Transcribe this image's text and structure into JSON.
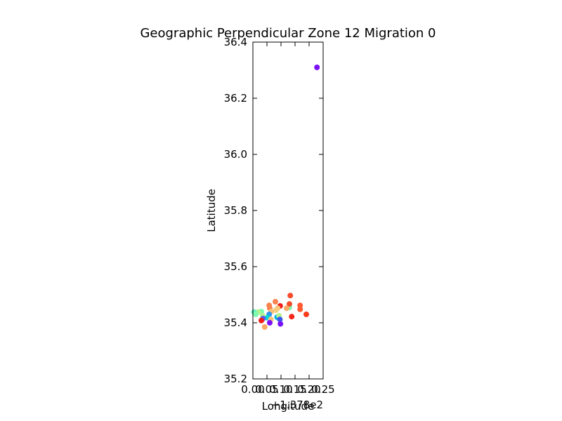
{
  "chart_data": {
    "type": "scatter",
    "title": "Geographic Perpendicular Zone 12 Migration 0",
    "xlabel": "Longitude",
    "ylabel": "Latitude",
    "x_offset_label": "+1.378e2",
    "xlim": [
      0.0,
      0.25
    ],
    "ylim": [
      35.2,
      36.4
    ],
    "x_ticks": [
      0.0,
      0.05,
      0.1,
      0.15,
      0.2,
      0.25
    ],
    "x_tick_labels": [
      "0.00",
      "0.05",
      "0.10",
      "0.15",
      "0.20",
      "0.25"
    ],
    "y_ticks": [
      35.2,
      35.4,
      35.6,
      35.8,
      36.0,
      36.2,
      36.4
    ],
    "y_tick_labels": [
      "35.2",
      "35.4",
      "35.6",
      "35.8",
      "36.0",
      "36.2",
      "36.4"
    ],
    "grid": false,
    "legend": "none",
    "points": [
      {
        "x": 0.228,
        "y": 36.31,
        "color": "#7a12f5"
      },
      {
        "x": 0.133,
        "y": 35.497,
        "color": "#f64a2a"
      },
      {
        "x": 0.13,
        "y": 35.455,
        "color": "#7dfcb1"
      },
      {
        "x": 0.13,
        "y": 35.467,
        "color": "#f64a2a"
      },
      {
        "x": 0.168,
        "y": 35.462,
        "color": "#ff5a32"
      },
      {
        "x": 0.168,
        "y": 35.448,
        "color": "#ff5a32"
      },
      {
        "x": 0.19,
        "y": 35.43,
        "color": "#f93b1d"
      },
      {
        "x": 0.138,
        "y": 35.422,
        "color": "#f4271a"
      },
      {
        "x": 0.12,
        "y": 35.452,
        "color": "#f9a866"
      },
      {
        "x": 0.08,
        "y": 35.475,
        "color": "#f9824e"
      },
      {
        "x": 0.058,
        "y": 35.462,
        "color": "#f9824e"
      },
      {
        "x": 0.097,
        "y": 35.46,
        "color": "#f21f18"
      },
      {
        "x": 0.088,
        "y": 35.452,
        "color": "#f9c47a"
      },
      {
        "x": 0.082,
        "y": 35.445,
        "color": "#f4ce80"
      },
      {
        "x": 0.06,
        "y": 35.452,
        "color": "#f9824e"
      },
      {
        "x": 0.066,
        "y": 35.44,
        "color": "#f9c47a"
      },
      {
        "x": 0.03,
        "y": 35.44,
        "color": "#7dfcb1"
      },
      {
        "x": 0.018,
        "y": 35.438,
        "color": "#b4f28a"
      },
      {
        "x": 0.004,
        "y": 35.438,
        "color": "#5cf0c3"
      },
      {
        "x": 0.01,
        "y": 35.43,
        "color": "#7dfcb1"
      },
      {
        "x": 0.035,
        "y": 35.425,
        "color": "#b4f28a"
      },
      {
        "x": 0.058,
        "y": 35.43,
        "color": "#2e96f0"
      },
      {
        "x": 0.052,
        "y": 35.418,
        "color": "#00d8d8"
      },
      {
        "x": 0.086,
        "y": 35.42,
        "color": "#00b4e6"
      },
      {
        "x": 0.093,
        "y": 35.425,
        "color": "#b4f28a"
      },
      {
        "x": 0.096,
        "y": 35.412,
        "color": "#3a58f0"
      },
      {
        "x": 0.064,
        "y": 35.412,
        "color": "#f9c47a"
      },
      {
        "x": 0.06,
        "y": 35.4,
        "color": "#7a12f5"
      },
      {
        "x": 0.098,
        "y": 35.396,
        "color": "#7a12f5"
      },
      {
        "x": 0.036,
        "y": 35.415,
        "color": "#5a5af0"
      },
      {
        "x": 0.03,
        "y": 35.408,
        "color": "#f21f18"
      },
      {
        "x": 0.042,
        "y": 35.385,
        "color": "#f9a866"
      }
    ]
  }
}
